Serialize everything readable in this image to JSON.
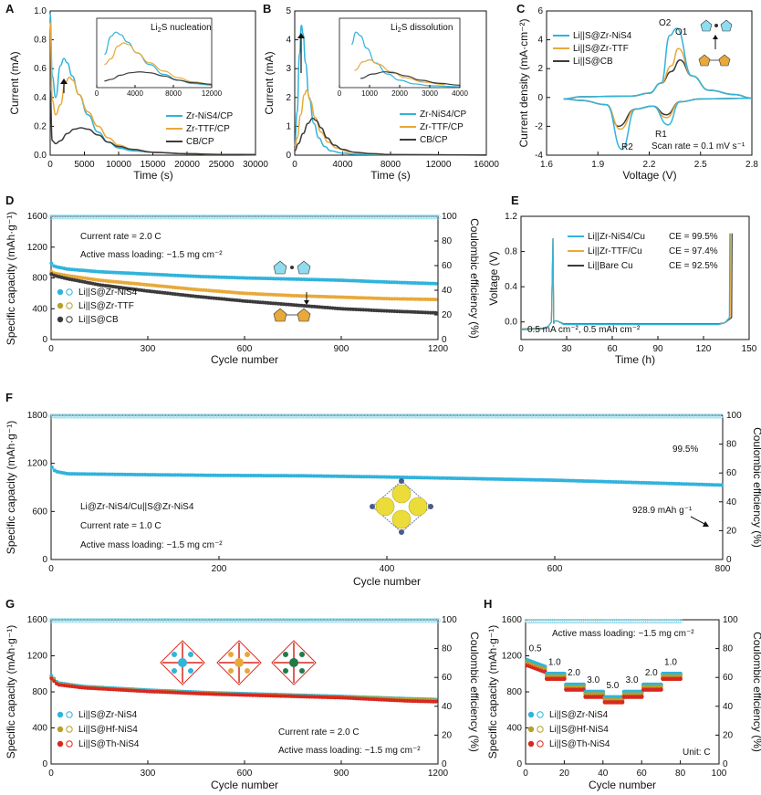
{
  "colors": {
    "blue": "#31b3dc",
    "blue_light": "#8fdcef",
    "orange": "#e8a93a",
    "dark": "#3b3b3b",
    "olive": "#b6a12a",
    "red": "#d8281e"
  },
  "chart_data": [
    {
      "panel": "A",
      "type": "line",
      "xlabel": "Time (s)",
      "ylabel": "Current (mA)",
      "xlim": [
        0,
        30000
      ],
      "ylim": [
        0,
        1.0
      ],
      "xticks": [
        0,
        5000,
        10000,
        15000,
        20000,
        25000,
        30000
      ],
      "yticks": [
        0.0,
        0.2,
        0.4,
        0.6,
        0.8,
        1.0
      ],
      "series": [
        {
          "name": "Zr-NiS4/CP",
          "color": "#31b3dc",
          "x": [
            0,
            300,
            800,
            1500,
            2000,
            2500,
            3200,
            4200,
            5500,
            7000,
            8500,
            10000,
            12000,
            15000,
            20000,
            25000,
            30000
          ],
          "y": [
            0.98,
            0.55,
            0.4,
            0.62,
            0.67,
            0.64,
            0.55,
            0.42,
            0.28,
            0.16,
            0.09,
            0.05,
            0.03,
            0.02,
            0.01,
            0.005,
            0.004
          ]
        },
        {
          "name": "Zr-TTF/CP",
          "color": "#e8a93a",
          "x": [
            0,
            300,
            800,
            1500,
            2200,
            2800,
            3300,
            4200,
            5500,
            7000,
            8500,
            10000,
            12000,
            15000,
            20000,
            25000,
            30000
          ],
          "y": [
            0.92,
            0.38,
            0.28,
            0.35,
            0.5,
            0.54,
            0.52,
            0.42,
            0.3,
            0.2,
            0.12,
            0.07,
            0.04,
            0.02,
            0.01,
            0.005,
            0.004
          ]
        },
        {
          "name": "CB/CP",
          "color": "#3b3b3b",
          "x": [
            0,
            300,
            800,
            1500,
            2500,
            3500,
            4500,
            5500,
            7000,
            8500,
            10000,
            12000,
            15000,
            20000,
            25000,
            30000
          ],
          "y": [
            0.45,
            0.1,
            0.08,
            0.1,
            0.15,
            0.18,
            0.19,
            0.18,
            0.14,
            0.09,
            0.06,
            0.04,
            0.02,
            0.01,
            0.005,
            0.004
          ]
        }
      ],
      "inset": {
        "title": "Li2S nucleation",
        "xlim": [
          0,
          12000
        ],
        "xticks": [
          0,
          4000,
          8000,
          12000
        ]
      },
      "legend": [
        "Zr-NiS4/CP",
        "Zr-TTF/CP",
        "CB/CP"
      ]
    },
    {
      "panel": "B",
      "type": "line",
      "xlabel": "Time (s)",
      "ylabel": "Current (mA)",
      "xlim": [
        0,
        16000
      ],
      "ylim": [
        0,
        5
      ],
      "xticks": [
        0,
        4000,
        8000,
        12000,
        16000
      ],
      "yticks": [
        0,
        1,
        2,
        3,
        4,
        5
      ],
      "series": [
        {
          "name": "Zr-NiS4/CP",
          "color": "#31b3dc",
          "x": [
            0,
            200,
            400,
            550,
            700,
            900,
            1200,
            1600,
            2000,
            2500,
            3000,
            4000,
            5000,
            7000,
            10000,
            16000
          ],
          "y": [
            0.3,
            1.5,
            3.5,
            4.5,
            4.2,
            3.2,
            2.0,
            1.1,
            0.6,
            0.3,
            0.15,
            0.07,
            0.03,
            0.02,
            0.01,
            0.005
          ]
        },
        {
          "name": "Zr-TTF/CP",
          "color": "#e8a93a",
          "x": [
            0,
            200,
            500,
            800,
            1000,
            1300,
            1700,
            2200,
            2800,
            3500,
            4500,
            6000,
            8000,
            12000,
            16000
          ],
          "y": [
            0.2,
            0.6,
            1.4,
            2.1,
            2.25,
            1.9,
            1.3,
            0.8,
            0.45,
            0.25,
            0.12,
            0.05,
            0.02,
            0.01,
            0.005
          ]
        },
        {
          "name": "CB/CP",
          "color": "#3b3b3b",
          "x": [
            0,
            300,
            700,
            1100,
            1500,
            1800,
            2200,
            2700,
            3300,
            4000,
            5000,
            6500,
            8000,
            12000,
            16000
          ],
          "y": [
            0.15,
            0.4,
            0.75,
            1.1,
            1.28,
            1.2,
            0.95,
            0.6,
            0.35,
            0.2,
            0.1,
            0.05,
            0.02,
            0.01,
            0.005
          ]
        }
      ],
      "inset": {
        "title": "Li2S dissolution",
        "xlim": [
          0,
          4000
        ],
        "xticks": [
          0,
          1000,
          2000,
          3000,
          4000
        ]
      },
      "legend": [
        "Zr-NiS4/CP",
        "Zr-TTF/CP",
        "CB/CP"
      ]
    },
    {
      "panel": "C",
      "type": "line",
      "xlabel": "Voltage (V)",
      "ylabel": "Current density (mA·cm⁻²)",
      "xlim": [
        1.6,
        2.8
      ],
      "ylim": [
        -4,
        6
      ],
      "xticks": [
        1.6,
        1.9,
        2.2,
        2.5,
        2.8
      ],
      "yticks": [
        -4,
        -2,
        0,
        2,
        4,
        6
      ],
      "annotations": [
        "O2",
        "O1",
        "R1",
        "R2",
        "Scan rate = 0.1 mV s⁻¹"
      ],
      "legend": [
        "Li||S@Zr-NiS4",
        "Li||S@Zr-TTF",
        "Li||S@CB"
      ]
    },
    {
      "panel": "D",
      "type": "scatter",
      "xlabel": "Cycle number",
      "ylabel": "Specific capacity (mAh·g⁻¹)",
      "y2label": "Coulombic efficiency (%)",
      "xlim": [
        0,
        1200
      ],
      "ylim": [
        0,
        1600
      ],
      "y2lim": [
        0,
        100
      ],
      "xticks": [
        0,
        300,
        600,
        900,
        1200
      ],
      "yticks": [
        0,
        400,
        800,
        1200,
        1600
      ],
      "y2ticks": [
        0,
        20,
        40,
        60,
        80,
        100
      ],
      "series": [
        {
          "name": "Li||S@Zr-NiS4",
          "color": "#31b3dc",
          "x": [
            1,
            10,
            50,
            150,
            300,
            450,
            600,
            750,
            900,
            1050,
            1200
          ],
          "y": [
            990,
            950,
            915,
            880,
            850,
            820,
            800,
            785,
            770,
            745,
            725
          ]
        },
        {
          "name": "Li||S@Zr-TTF",
          "color": "#e8a93a",
          "x": [
            1,
            10,
            50,
            150,
            300,
            450,
            600,
            750,
            900,
            1050,
            1200
          ],
          "y": [
            880,
            860,
            830,
            770,
            710,
            650,
            600,
            570,
            550,
            530,
            520
          ]
        },
        {
          "name": "Li||S@CB",
          "color": "#3b3b3b",
          "x": [
            1,
            10,
            50,
            150,
            300,
            450,
            600,
            750,
            900,
            1050,
            1200
          ],
          "y": [
            850,
            830,
            790,
            710,
            630,
            560,
            500,
            450,
            400,
            370,
            345
          ]
        }
      ],
      "ce": 99.5,
      "annotations": [
        "Current rate = 2.0 C",
        "Active mass loading: ~1.5 mg cm⁻²"
      ],
      "legend": [
        "Li||S@Zr-NiS4",
        "Li||S@Zr-TTF",
        "Li||S@CB"
      ]
    },
    {
      "panel": "E",
      "type": "line",
      "xlabel": "Time (h)",
      "ylabel": "Voltage (V)",
      "xlim": [
        0,
        150
      ],
      "ylim": [
        -0.2,
        1.2
      ],
      "xticks": [
        0,
        30,
        60,
        90,
        120,
        150
      ],
      "yticks": [
        0.0,
        0.4,
        0.8,
        1.2
      ],
      "legend": [
        "Li||Zr-NiS4/Cu",
        "Li||Zr-TTF/Cu",
        "Li||Bare Cu"
      ],
      "ce_values": [
        "CE = 99.5%",
        "CE = 97.4%",
        "CE = 92.5%"
      ],
      "annotations": [
        "0.5 mA cm⁻², 0.5 mAh cm⁻²"
      ]
    },
    {
      "panel": "F",
      "type": "scatter",
      "xlabel": "Cycle number",
      "ylabel": "Specific capacity (mAh·g⁻¹)",
      "y2label": "Coulombic efficiency (%)",
      "xlim": [
        0,
        800
      ],
      "ylim": [
        0,
        1800
      ],
      "y2lim": [
        0,
        100
      ],
      "xticks": [
        0,
        200,
        400,
        600,
        800
      ],
      "yticks": [
        0,
        600,
        1200,
        1800
      ],
      "y2ticks": [
        0,
        20,
        40,
        60,
        80,
        100
      ],
      "series": [
        {
          "name": "Li@Zr-NiS4/Cu||S@Zr-NiS4",
          "color": "#31b3dc",
          "x": [
            1,
            5,
            20,
            100,
            200,
            300,
            400,
            500,
            600,
            700,
            800
          ],
          "y": [
            1150,
            1100,
            1070,
            1060,
            1050,
            1045,
            1030,
            1010,
            990,
            960,
            928.9
          ]
        }
      ],
      "ce": 99.5,
      "annotations": [
        "Li@Zr-NiS4/Cu||S@Zr-NiS4",
        "Current rate = 1.0 C",
        "Active mass loading: ~1.5 mg cm⁻²",
        "99.5%",
        "928.9 mAh g⁻¹"
      ]
    },
    {
      "panel": "G",
      "type": "scatter",
      "xlabel": "Cycle number",
      "ylabel": "Specific capacity (mAh·g⁻¹)",
      "y2label": "Coulombic efficiency (%)",
      "xlim": [
        0,
        1200
      ],
      "ylim": [
        0,
        1600
      ],
      "y2lim": [
        0,
        100
      ],
      "xticks": [
        0,
        300,
        600,
        900,
        1200
      ],
      "yticks": [
        0,
        400,
        800,
        1200,
        1600
      ],
      "y2ticks": [
        0,
        20,
        40,
        60,
        80,
        100
      ],
      "series": [
        {
          "name": "Li||S@Zr-NiS4",
          "color": "#31b3dc",
          "x": [
            1,
            20,
            100,
            300,
            500,
            700,
            900,
            1100,
            1200
          ],
          "y": [
            980,
            900,
            860,
            820,
            790,
            770,
            750,
            725,
            715
          ]
        },
        {
          "name": "Li||S@Hf-NiS4",
          "color": "#b6a12a",
          "x": [
            1,
            20,
            100,
            300,
            500,
            700,
            900,
            1100,
            1200
          ],
          "y": [
            960,
            890,
            850,
            810,
            780,
            760,
            740,
            720,
            705
          ]
        },
        {
          "name": "Li||S@Th-NiS4",
          "color": "#d8281e",
          "x": [
            1,
            20,
            100,
            300,
            500,
            700,
            900,
            1100,
            1200
          ],
          "y": [
            950,
            880,
            845,
            805,
            775,
            755,
            735,
            700,
            690
          ]
        }
      ],
      "ce": 99.5,
      "annotations": [
        "Current rate = 2.0 C",
        "Active mass loading: ~1.5 mg cm⁻²"
      ],
      "legend": [
        "Li||S@Zr-NiS4",
        "Li||S@Hf-NiS4",
        "Li||S@Th-NiS4"
      ]
    },
    {
      "panel": "H",
      "type": "scatter",
      "xlabel": "Cycle number",
      "ylabel": "Specific capacity (mAh·g⁻¹)",
      "y2label": "Coulombic efficiency (%)",
      "xlim": [
        0,
        100
      ],
      "ylim": [
        0,
        1600
      ],
      "y2lim": [
        0,
        100
      ],
      "xticks": [
        0,
        20,
        40,
        60,
        80,
        100
      ],
      "yticks": [
        0,
        400,
        800,
        1200,
        1600
      ],
      "y2ticks": [
        0,
        20,
        40,
        60,
        80,
        100
      ],
      "rates": [
        "0.5",
        "1.0",
        "2.0",
        "3.0",
        "5.0",
        "3.0",
        "2.0",
        "1.0"
      ],
      "rate_capacity": [
        1150,
        1000,
        880,
        800,
        740,
        800,
        880,
        1000
      ],
      "annotations": [
        "Active mass loading: ~1.5 mg cm⁻²",
        "Unit: C"
      ],
      "legend": [
        "Li||S@Zr-NiS4",
        "Li||S@Hf-NiS4",
        "Li||S@Th-NiS4"
      ]
    }
  ]
}
